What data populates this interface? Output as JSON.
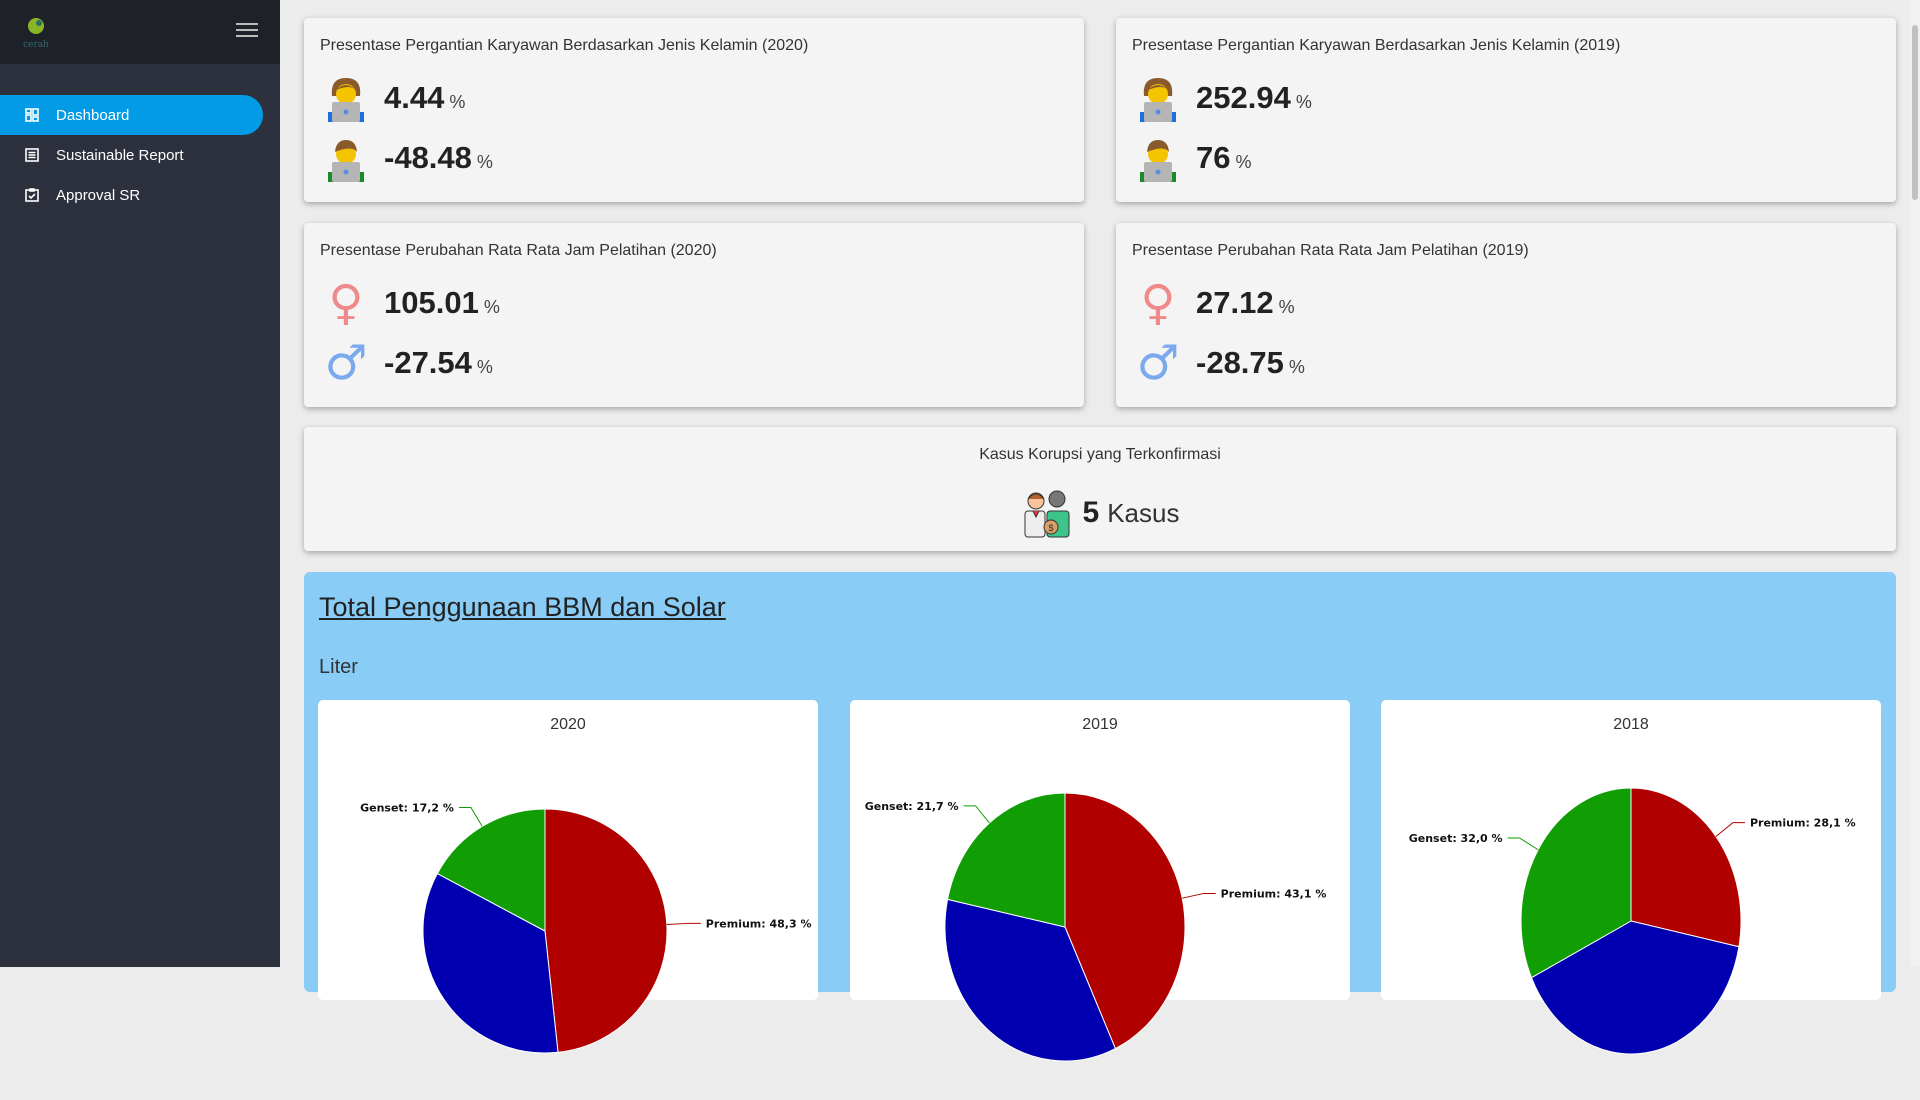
{
  "sidebar": {
    "logo_text": "cerah",
    "items": [
      {
        "label": "Dashboard",
        "icon": "dashboard-icon",
        "active": true
      },
      {
        "label": "Sustainable Report",
        "icon": "list-icon"
      },
      {
        "label": "Approval SR",
        "icon": "clipboard-check-icon"
      }
    ]
  },
  "cards": [
    {
      "title": "Presentase Pergantian Karyawan Berdasarkan Jenis Kelamin (2020)",
      "female": "4.44",
      "male": "-48.48",
      "unit": "%"
    },
    {
      "title": "Presentase Pergantian Karyawan Berdasarkan Jenis Kelamin (2019)",
      "female": "252.94",
      "male": "76",
      "unit": "%"
    },
    {
      "title": "Presentase Perubahan Rata Rata Jam Pelatihan (2020)",
      "female": "105.01",
      "male": "-27.54",
      "unit": "%"
    },
    {
      "title": "Presentase Perubahan Rata Rata Jam Pelatihan (2019)",
      "female": "27.12",
      "male": "-28.75",
      "unit": "%"
    }
  ],
  "corruption": {
    "title": "Kasus Korupsi yang Terkonfirmasi",
    "count": "5",
    "unit": "Kasus"
  },
  "fuel": {
    "title": "Total Penggunaan BBM dan Solar",
    "unit": "Liter"
  },
  "chart_data": [
    {
      "type": "pie",
      "title": "2020",
      "slices": [
        {
          "name": "Premium",
          "value": 48.3,
          "label": "Premium: 48,3 %",
          "color": "#b00000"
        },
        {
          "value": 34.5,
          "color": "#0000b0"
        },
        {
          "name": "Genset",
          "value": 17.2,
          "label": "Genset: 17,2 %",
          "color": "#119e05"
        }
      ]
    },
    {
      "type": "pie",
      "title": "2019",
      "slices": [
        {
          "name": "Premium",
          "value": 43.1,
          "label": "Premium: 43,1 %",
          "color": "#b00000"
        },
        {
          "value": 35.2,
          "color": "#0000b0"
        },
        {
          "name": "Genset",
          "value": 21.7,
          "label": "Genset: 21,7 %",
          "color": "#119e05"
        }
      ]
    },
    {
      "type": "pie",
      "title": "2018",
      "slices": [
        {
          "name": "Premium",
          "value": 28.1,
          "label": "Premium: 28,1 %",
          "color": "#b00000"
        },
        {
          "value": 39.9,
          "color": "#0000b0"
        },
        {
          "name": "Genset",
          "value": 32.0,
          "label": "Genset: 32,0 %",
          "color": "#119e05"
        }
      ]
    }
  ]
}
